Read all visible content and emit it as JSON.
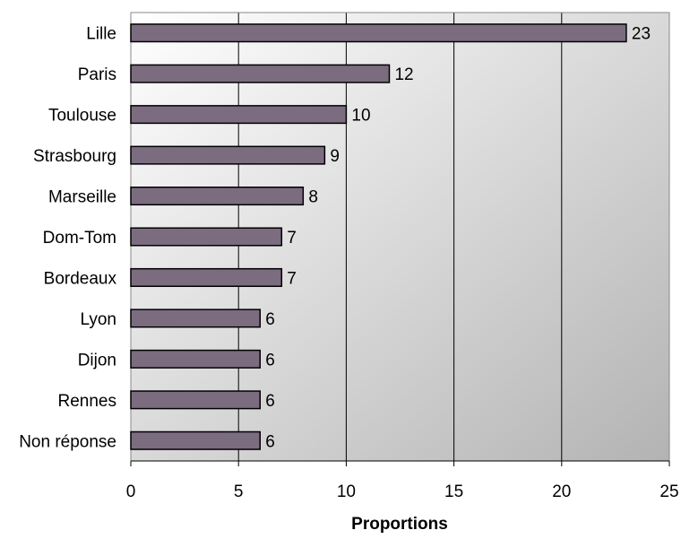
{
  "chart_data": {
    "type": "bar",
    "orientation": "horizontal",
    "categories": [
      "Lille",
      "Paris",
      "Toulouse",
      "Strasbourg",
      "Marseille",
      "Dom-Tom",
      "Bordeaux",
      "Lyon",
      "Dijon",
      "Rennes",
      "Non réponse"
    ],
    "values": [
      23,
      12,
      10,
      9,
      8,
      7,
      7,
      6,
      6,
      6,
      6
    ],
    "xlabel": "Proportions",
    "ylabel": "",
    "xlim": [
      0,
      25
    ],
    "xticks": [
      "0",
      "5",
      "10",
      "15",
      "20",
      "25"
    ],
    "grid": "vertical",
    "legend": "none",
    "colors": {
      "bar_fill": "#7b6c80",
      "bar_stroke": "#000000",
      "plot_bg_light": "#ffffff",
      "plot_bg_dark": "#b3b3b3",
      "grid": "#000000"
    }
  }
}
